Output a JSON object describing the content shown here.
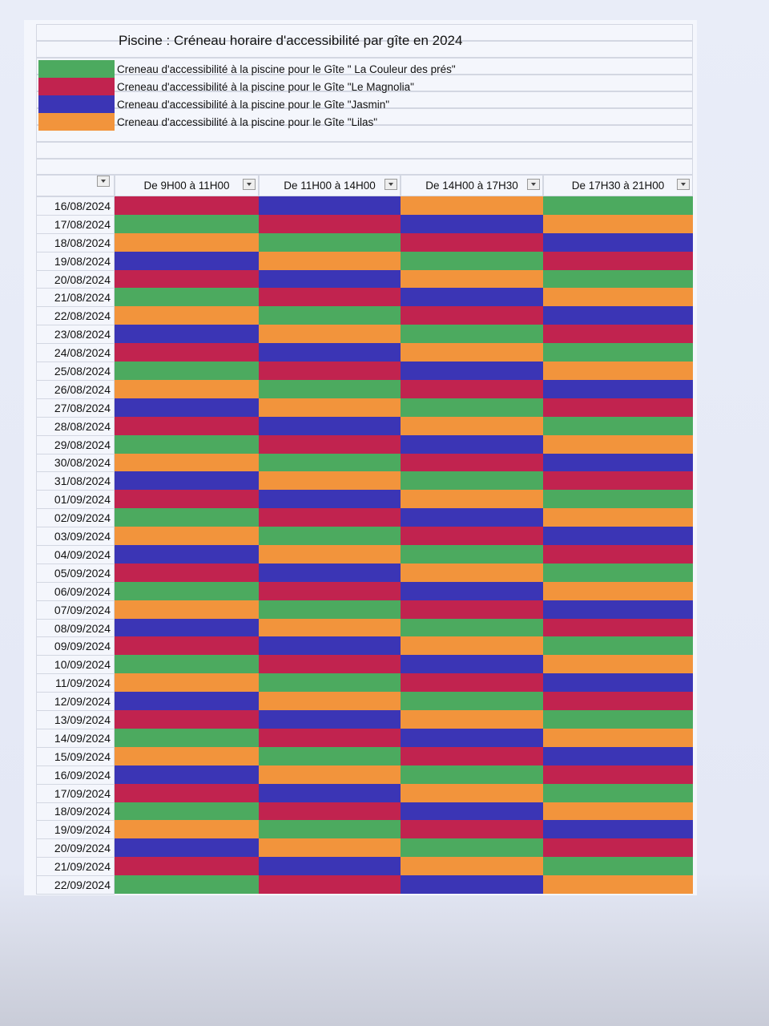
{
  "title": "Piscine : Créneau horaire d'accessibilité par gîte en 2024",
  "legend": [
    {
      "color": "#4caa5f",
      "label": "Creneau d'accessibilité à la piscine pour le Gîte \" La Couleur des prés\""
    },
    {
      "color": "#c1234f",
      "label": "Creneau d'accessibilité à la piscine pour le Gîte \"Le Magnolia\""
    },
    {
      "color": "#3b35b5",
      "label": "Creneau d'accessibilité à la piscine pour le Gîte \"Jasmin\""
    },
    {
      "color": "#f2943c",
      "label": "Creneau d'accessibilité à la piscine pour le Gîte \"Lilas\""
    }
  ],
  "columns": [
    "De 9H00 à 11H00",
    "De 11H00 à 14H00",
    "De 14H00 à 17H30",
    "De 17H30 à 21H00"
  ],
  "rows": [
    {
      "date": "16/08/2024",
      "colors": [
        "#c1234f",
        "#3b35b5",
        "#f2943c",
        "#4caa5f"
      ]
    },
    {
      "date": "17/08/2024",
      "colors": [
        "#4caa5f",
        "#c1234f",
        "#3b35b5",
        "#f2943c"
      ]
    },
    {
      "date": "18/08/2024",
      "colors": [
        "#f2943c",
        "#4caa5f",
        "#c1234f",
        "#3b35b5"
      ]
    },
    {
      "date": "19/08/2024",
      "colors": [
        "#3b35b5",
        "#f2943c",
        "#4caa5f",
        "#c1234f"
      ]
    },
    {
      "date": "20/08/2024",
      "colors": [
        "#c1234f",
        "#3b35b5",
        "#f2943c",
        "#4caa5f"
      ]
    },
    {
      "date": "21/08/2024",
      "colors": [
        "#4caa5f",
        "#c1234f",
        "#3b35b5",
        "#f2943c"
      ]
    },
    {
      "date": "22/08/2024",
      "colors": [
        "#f2943c",
        "#4caa5f",
        "#c1234f",
        "#3b35b5"
      ]
    },
    {
      "date": "23/08/2024",
      "colors": [
        "#3b35b5",
        "#f2943c",
        "#4caa5f",
        "#c1234f"
      ]
    },
    {
      "date": "24/08/2024",
      "colors": [
        "#c1234f",
        "#3b35b5",
        "#f2943c",
        "#4caa5f"
      ]
    },
    {
      "date": "25/08/2024",
      "colors": [
        "#4caa5f",
        "#c1234f",
        "#3b35b5",
        "#f2943c"
      ]
    },
    {
      "date": "26/08/2024",
      "colors": [
        "#f2943c",
        "#4caa5f",
        "#c1234f",
        "#3b35b5"
      ]
    },
    {
      "date": "27/08/2024",
      "colors": [
        "#3b35b5",
        "#f2943c",
        "#4caa5f",
        "#c1234f"
      ]
    },
    {
      "date": "28/08/2024",
      "colors": [
        "#c1234f",
        "#3b35b5",
        "#f2943c",
        "#4caa5f"
      ]
    },
    {
      "date": "29/08/2024",
      "colors": [
        "#4caa5f",
        "#c1234f",
        "#3b35b5",
        "#f2943c"
      ]
    },
    {
      "date": "30/08/2024",
      "colors": [
        "#f2943c",
        "#4caa5f",
        "#c1234f",
        "#3b35b5"
      ]
    },
    {
      "date": "31/08/2024",
      "colors": [
        "#3b35b5",
        "#f2943c",
        "#4caa5f",
        "#c1234f"
      ]
    },
    {
      "date": "01/09/2024",
      "colors": [
        "#c1234f",
        "#3b35b5",
        "#f2943c",
        "#4caa5f"
      ]
    },
    {
      "date": "02/09/2024",
      "colors": [
        "#4caa5f",
        "#c1234f",
        "#3b35b5",
        "#f2943c"
      ]
    },
    {
      "date": "03/09/2024",
      "colors": [
        "#f2943c",
        "#4caa5f",
        "#c1234f",
        "#3b35b5"
      ]
    },
    {
      "date": "04/09/2024",
      "colors": [
        "#3b35b5",
        "#f2943c",
        "#4caa5f",
        "#c1234f"
      ]
    },
    {
      "date": "05/09/2024",
      "colors": [
        "#c1234f",
        "#3b35b5",
        "#f2943c",
        "#4caa5f"
      ]
    },
    {
      "date": "06/09/2024",
      "colors": [
        "#4caa5f",
        "#c1234f",
        "#3b35b5",
        "#f2943c"
      ]
    },
    {
      "date": "07/09/2024",
      "colors": [
        "#f2943c",
        "#4caa5f",
        "#c1234f",
        "#3b35b5"
      ]
    },
    {
      "date": "08/09/2024",
      "colors": [
        "#3b35b5",
        "#f2943c",
        "#4caa5f",
        "#c1234f"
      ]
    },
    {
      "date": "09/09/2024",
      "colors": [
        "#c1234f",
        "#3b35b5",
        "#f2943c",
        "#4caa5f"
      ]
    },
    {
      "date": "10/09/2024",
      "colors": [
        "#4caa5f",
        "#c1234f",
        "#3b35b5",
        "#f2943c"
      ]
    },
    {
      "date": "11/09/2024",
      "colors": [
        "#f2943c",
        "#4caa5f",
        "#c1234f",
        "#3b35b5"
      ]
    },
    {
      "date": "12/09/2024",
      "colors": [
        "#3b35b5",
        "#f2943c",
        "#4caa5f",
        "#c1234f"
      ]
    },
    {
      "date": "13/09/2024",
      "colors": [
        "#c1234f",
        "#3b35b5",
        "#f2943c",
        "#4caa5f"
      ]
    },
    {
      "date": "14/09/2024",
      "colors": [
        "#4caa5f",
        "#c1234f",
        "#3b35b5",
        "#f2943c"
      ]
    },
    {
      "date": "15/09/2024",
      "colors": [
        "#f2943c",
        "#4caa5f",
        "#c1234f",
        "#3b35b5"
      ]
    },
    {
      "date": "16/09/2024",
      "colors": [
        "#3b35b5",
        "#f2943c",
        "#4caa5f",
        "#c1234f"
      ]
    },
    {
      "date": "17/09/2024",
      "colors": [
        "#c1234f",
        "#3b35b5",
        "#f2943c",
        "#4caa5f"
      ]
    },
    {
      "date": "18/09/2024",
      "colors": [
        "#4caa5f",
        "#c1234f",
        "#3b35b5",
        "#f2943c"
      ]
    },
    {
      "date": "19/09/2024",
      "colors": [
        "#f2943c",
        "#4caa5f",
        "#c1234f",
        "#3b35b5"
      ]
    },
    {
      "date": "20/09/2024",
      "colors": [
        "#3b35b5",
        "#f2943c",
        "#4caa5f",
        "#c1234f"
      ]
    },
    {
      "date": "21/09/2024",
      "colors": [
        "#c1234f",
        "#3b35b5",
        "#f2943c",
        "#4caa5f"
      ]
    },
    {
      "date": "22/09/2024",
      "colors": [
        "#4caa5f",
        "#c1234f",
        "#3b35b5",
        "#f2943c"
      ]
    }
  ]
}
